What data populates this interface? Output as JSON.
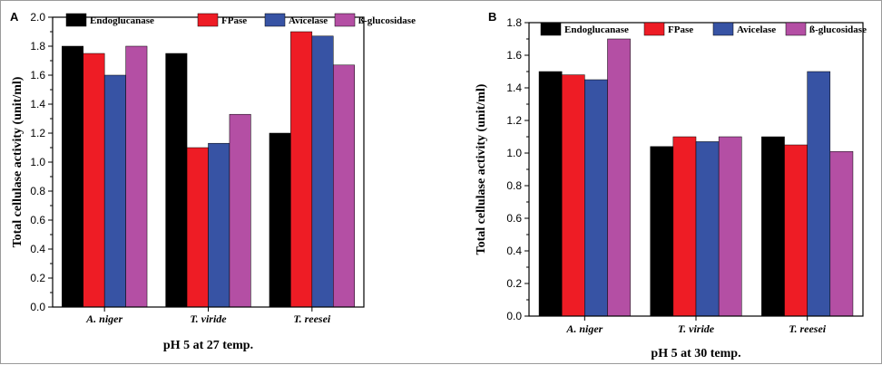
{
  "chart_data": [
    {
      "type": "bar",
      "panel_label": "A",
      "categories": [
        "A. niger",
        "T. viride",
        "T. reesei"
      ],
      "series": [
        {
          "name": "Endoglucanase",
          "color": "#000000",
          "values": [
            1.8,
            1.75,
            1.2
          ]
        },
        {
          "name": "FPase",
          "color": "#ee1c25",
          "values": [
            1.75,
            1.1,
            1.9
          ]
        },
        {
          "name": "Avicelase",
          "color": "#3753a4",
          "values": [
            1.6,
            1.13,
            1.87
          ]
        },
        {
          "name": "ß-glucosidase",
          "color": "#b44fa4",
          "values": [
            1.8,
            1.33,
            1.67
          ]
        }
      ],
      "xlabel": "pH 5 at 27 temp.",
      "ylabel": "Total cellulase activity (unit/ml)",
      "ylim": [
        0,
        2.0
      ],
      "yticks": [
        "0.0",
        "0.2",
        "0.4",
        "0.6",
        "0.8",
        "1.0",
        "1.2",
        "1.4",
        "1.6",
        "1.8",
        "2.0"
      ],
      "legend_position": "top"
    },
    {
      "type": "bar",
      "panel_label": "B",
      "categories": [
        "A. niger",
        "T. viride",
        "T. reesei"
      ],
      "series": [
        {
          "name": "Endoglucanase",
          "color": "#000000",
          "values": [
            1.5,
            1.04,
            1.1
          ]
        },
        {
          "name": "FPase",
          "color": "#ee1c25",
          "values": [
            1.48,
            1.1,
            1.05
          ]
        },
        {
          "name": "Avicelase",
          "color": "#3753a4",
          "values": [
            1.45,
            1.07,
            1.5
          ]
        },
        {
          "name": "ß-glucosidase",
          "color": "#b44fa4",
          "values": [
            1.7,
            1.1,
            1.01
          ]
        }
      ],
      "xlabel": "pH 5 at 30 temp.",
      "ylabel": "Total cellulase activity (unit/ml)",
      "ylim": [
        0,
        1.8
      ],
      "yticks": [
        "0.0",
        "0.2",
        "0.4",
        "0.6",
        "0.8",
        "1.0",
        "1.2",
        "1.4",
        "1.6",
        "1.8"
      ],
      "legend_position": "top"
    }
  ]
}
